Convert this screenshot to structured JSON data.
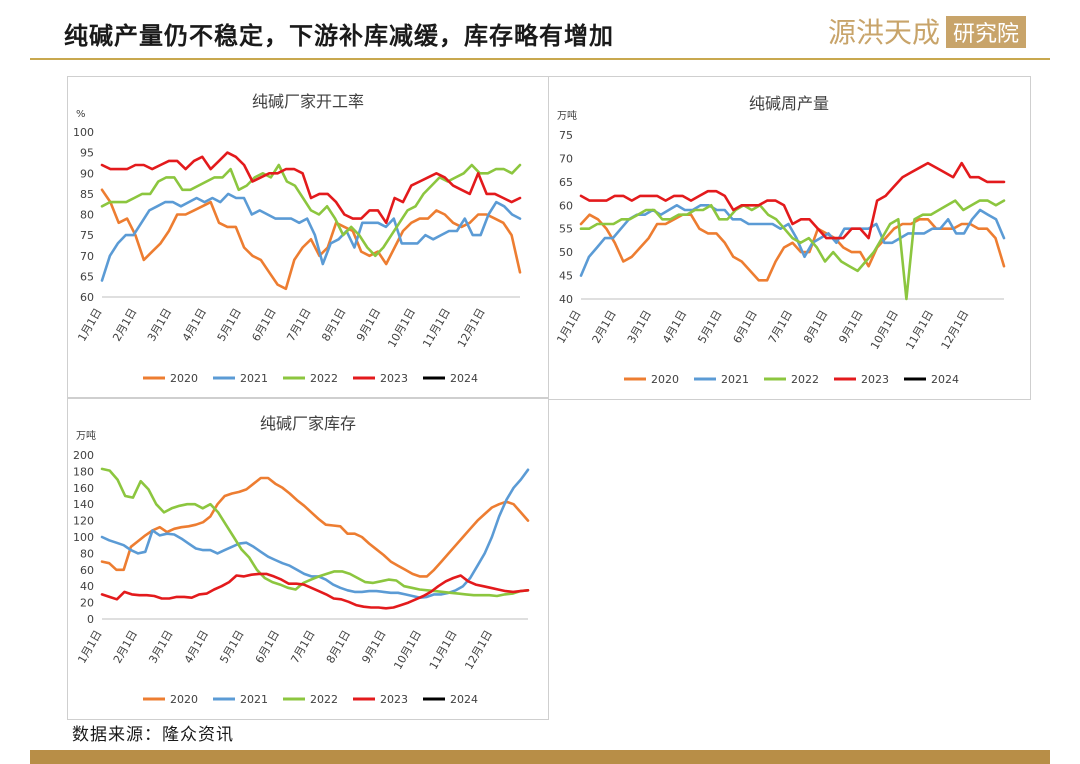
{
  "header": {
    "title": "纯碱产量仍不稳定，下游补库减缓，库存略有增加"
  },
  "logo": {
    "text": "源洪天成",
    "box_text": "研究院",
    "color": "#c8a46a"
  },
  "source": "数据来源：隆众资讯",
  "colors": {
    "2020": "#ED7D31",
    "2021": "#5B9BD5",
    "2022": "#8CC63F",
    "2023": "#E31A1C",
    "2024": "#000000"
  },
  "chart_data": [
    {
      "type": "line",
      "title": "纯碱厂家开工率",
      "unit": "%",
      "ylim": [
        60,
        100
      ],
      "yticks": [
        60,
        65,
        70,
        75,
        80,
        85,
        90,
        95,
        100
      ],
      "x_ticks": [
        "1月1日",
        "2月1日",
        "3月1日",
        "4月1日",
        "5月1日",
        "6月1日",
        "7月1日",
        "8月1日",
        "9月1日",
        "10月1日",
        "11月1日",
        "12月1日"
      ],
      "legend": [
        "2020",
        "2021",
        "2022",
        "2023",
        "2024"
      ],
      "series": [
        {
          "name": "2020",
          "values": [
            86,
            83,
            78,
            79,
            75,
            69,
            71,
            73,
            76,
            80,
            80,
            81,
            82,
            83,
            78,
            77,
            77,
            72,
            70,
            69,
            66,
            63,
            62,
            69,
            72,
            74,
            70,
            72,
            78,
            77,
            76,
            71,
            70,
            71,
            68,
            72,
            76,
            78,
            79,
            79,
            81,
            80,
            78,
            77,
            78,
            80,
            80,
            79,
            78,
            75,
            66
          ]
        },
        {
          "name": "2021",
          "values": [
            64,
            70,
            73,
            75,
            75,
            78,
            81,
            82,
            83,
            83,
            82,
            83,
            84,
            83,
            84,
            83,
            85,
            84,
            84,
            80,
            81,
            80,
            79,
            79,
            79,
            78,
            79,
            75,
            68,
            73,
            74,
            76,
            72,
            78,
            78,
            78,
            77,
            79,
            73,
            73,
            73,
            75,
            74,
            75,
            76,
            76,
            79,
            75,
            75,
            80,
            83,
            82,
            80,
            79
          ]
        },
        {
          "name": "2022",
          "values": [
            82,
            83,
            83,
            83,
            84,
            85,
            85,
            88,
            89,
            89,
            86,
            86,
            87,
            88,
            89,
            89,
            91,
            86,
            87,
            89,
            90,
            89,
            92,
            88,
            87,
            84,
            81,
            80,
            82,
            79,
            75,
            77,
            75,
            72,
            70,
            72,
            75,
            78,
            81,
            82,
            85,
            87,
            89,
            88,
            89,
            90,
            92,
            90,
            90,
            91,
            91,
            90,
            92
          ]
        },
        {
          "name": "2023",
          "values": [
            92,
            91,
            91,
            91,
            92,
            92,
            91,
            92,
            93,
            93,
            91,
            93,
            94,
            91,
            93,
            95,
            94,
            92,
            88,
            89,
            90,
            90,
            91,
            91,
            90,
            84,
            85,
            85,
            83,
            80,
            79,
            79,
            81,
            81,
            78,
            84,
            83,
            87,
            88,
            89,
            90,
            89,
            87,
            86,
            85,
            90,
            85,
            85,
            84,
            83,
            84
          ]
        }
      ]
    },
    {
      "type": "line",
      "title": "纯碱周产量",
      "unit": "万吨",
      "ylim": [
        40,
        75
      ],
      "yticks": [
        40,
        45,
        50,
        55,
        60,
        65,
        70,
        75
      ],
      "x_ticks": [
        "1月1日",
        "2月1日",
        "3月1日",
        "4月1日",
        "5月1日",
        "6月1日",
        "7月1日",
        "8月1日",
        "9月1日",
        "10月1日",
        "11月1日",
        "12月1日"
      ],
      "legend": [
        "2020",
        "2021",
        "2022",
        "2023",
        "2024"
      ],
      "series": [
        {
          "name": "2020",
          "values": [
            56,
            58,
            57,
            55,
            52,
            48,
            49,
            51,
            53,
            56,
            56,
            57,
            58,
            58,
            55,
            54,
            54,
            52,
            49,
            48,
            46,
            44,
            44,
            48,
            51,
            52,
            50,
            50,
            55,
            54,
            53,
            51,
            50,
            50,
            47,
            51,
            53,
            55,
            56,
            56,
            57,
            57,
            55,
            55,
            55,
            56,
            56,
            55,
            55,
            53,
            47
          ]
        },
        {
          "name": "2021",
          "values": [
            45,
            49,
            51,
            53,
            53,
            55,
            57,
            58,
            58,
            59,
            58,
            59,
            60,
            59,
            59,
            60,
            60,
            59,
            59,
            57,
            57,
            56,
            56,
            56,
            56,
            55,
            56,
            53,
            49,
            52,
            53,
            54,
            52,
            55,
            55,
            55,
            55,
            56,
            52,
            52,
            53,
            54,
            54,
            54,
            55,
            55,
            57,
            54,
            54,
            57,
            59,
            58,
            57,
            53
          ]
        },
        {
          "name": "2022",
          "values": [
            55,
            55,
            56,
            56,
            56,
            57,
            57,
            58,
            59,
            59,
            57,
            57,
            58,
            58,
            59,
            59,
            60,
            57,
            57,
            59,
            60,
            59,
            60,
            58,
            57,
            55,
            53,
            52,
            53,
            51,
            48,
            50,
            48,
            47,
            46,
            48,
            50,
            53,
            56,
            57,
            40,
            57,
            58,
            58,
            59,
            60,
            61,
            59,
            60,
            61,
            61,
            60,
            61
          ]
        },
        {
          "name": "2023",
          "values": [
            62,
            61,
            61,
            61,
            62,
            62,
            61,
            62,
            62,
            62,
            61,
            62,
            62,
            61,
            62,
            63,
            63,
            62,
            59,
            60,
            60,
            60,
            61,
            61,
            60,
            56,
            57,
            57,
            55,
            53,
            53,
            53,
            55,
            55,
            53,
            61,
            62,
            64,
            66,
            67,
            68,
            69,
            68,
            67,
            66,
            69,
            66,
            66,
            65,
            65,
            65
          ]
        }
      ]
    },
    {
      "type": "line",
      "title": "纯碱厂家库存",
      "unit": "万吨",
      "ylim": [
        0,
        200
      ],
      "yticks": [
        0,
        20,
        40,
        60,
        80,
        100,
        120,
        140,
        160,
        180,
        200
      ],
      "x_ticks": [
        "1月1日",
        "2月1日",
        "3月1日",
        "4月1日",
        "5月1日",
        "6月1日",
        "7月1日",
        "8月1日",
        "9月1日",
        "10月1日",
        "11月1日",
        "12月1日"
      ],
      "legend": [
        "2020",
        "2021",
        "2022",
        "2023",
        "2024"
      ],
      "series": [
        {
          "name": "2020",
          "values": [
            70,
            68,
            60,
            60,
            88,
            95,
            102,
            108,
            112,
            106,
            110,
            112,
            113,
            115,
            118,
            125,
            140,
            150,
            153,
            155,
            158,
            165,
            172,
            172,
            165,
            160,
            153,
            145,
            138,
            130,
            122,
            115,
            114,
            113,
            104,
            104,
            100,
            92,
            85,
            78,
            70,
            65,
            60,
            55,
            52,
            52,
            60,
            70,
            80,
            90,
            100,
            110,
            120,
            128,
            136,
            140,
            143,
            140,
            130,
            120
          ]
        },
        {
          "name": "2021",
          "values": [
            100,
            96,
            93,
            90,
            84,
            80,
            82,
            108,
            102,
            104,
            103,
            98,
            92,
            86,
            84,
            84,
            80,
            84,
            88,
            92,
            93,
            88,
            82,
            76,
            72,
            68,
            65,
            60,
            55,
            52,
            52,
            48,
            42,
            38,
            35,
            33,
            33,
            34,
            34,
            33,
            32,
            32,
            30,
            28,
            26,
            27,
            30,
            30,
            32,
            35,
            40,
            50,
            65,
            80,
            100,
            125,
            145,
            160,
            170,
            182
          ]
        },
        {
          "name": "2022",
          "values": [
            183,
            181,
            170,
            150,
            148,
            168,
            158,
            140,
            130,
            135,
            138,
            140,
            140,
            135,
            140,
            130,
            115,
            100,
            85,
            75,
            60,
            50,
            45,
            42,
            38,
            36,
            44,
            48,
            52,
            55,
            58,
            58,
            55,
            50,
            45,
            44,
            46,
            48,
            47,
            40,
            38,
            36,
            35,
            34,
            33,
            32,
            31,
            30,
            29,
            29,
            29,
            28,
            30,
            31,
            34,
            35
          ]
        },
        {
          "name": "2023",
          "values": [
            30,
            27,
            24,
            33,
            30,
            29,
            29,
            28,
            25,
            25,
            27,
            27,
            26,
            30,
            31,
            36,
            40,
            45,
            53,
            52,
            54,
            55,
            55,
            52,
            48,
            43,
            43,
            42,
            38,
            34,
            30,
            25,
            24,
            21,
            17,
            15,
            14,
            14,
            13,
            14,
            17,
            20,
            24,
            28,
            33,
            40,
            46,
            50,
            53,
            46,
            42,
            40,
            38,
            36,
            34,
            33,
            34,
            35
          ]
        }
      ]
    }
  ]
}
